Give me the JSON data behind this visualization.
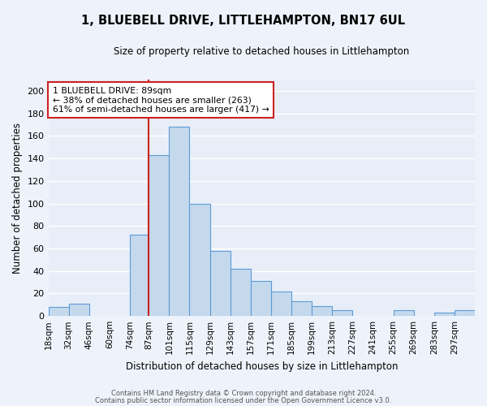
{
  "title": "1, BLUEBELL DRIVE, LITTLEHAMPTON, BN17 6UL",
  "subtitle": "Size of property relative to detached houses in Littlehampton",
  "xlabel": "Distribution of detached houses by size in Littlehampton",
  "ylabel": "Number of detached properties",
  "bar_color": "#c5d9ed",
  "bar_edge_color": "#5b9bd5",
  "fig_facecolor": "#eef3fb",
  "ax_facecolor": "#e8eef8",
  "grid_color": "#ffffff",
  "categories": [
    "18sqm",
    "32sqm",
    "46sqm",
    "60sqm",
    "74sqm",
    "87sqm",
    "101sqm",
    "115sqm",
    "129sqm",
    "143sqm",
    "157sqm",
    "171sqm",
    "185sqm",
    "199sqm",
    "213sqm",
    "227sqm",
    "241sqm",
    "255sqm",
    "269sqm",
    "283sqm",
    "297sqm"
  ],
  "values": [
    8,
    11,
    0,
    0,
    72,
    143,
    168,
    100,
    58,
    42,
    31,
    22,
    13,
    9,
    5,
    0,
    0,
    5,
    0,
    3,
    5
  ],
  "ylim": [
    0,
    210
  ],
  "yticks": [
    0,
    20,
    40,
    60,
    80,
    100,
    120,
    140,
    160,
    180,
    200
  ],
  "property_line_x": 87,
  "property_line_label": "1 BLUEBELL DRIVE: 89sqm",
  "annotation_line1": "← 38% of detached houses are smaller (263)",
  "annotation_line2": "61% of semi-detached houses are larger (417) →",
  "footer_line1": "Contains HM Land Registry data © Crown copyright and database right 2024.",
  "footer_line2": "Contains public sector information licensed under the Open Government Licence v3.0.",
  "bin_edges": [
    18,
    32,
    46,
    60,
    74,
    87,
    101,
    115,
    129,
    143,
    157,
    171,
    185,
    199,
    213,
    227,
    241,
    255,
    269,
    283,
    297,
    311
  ]
}
